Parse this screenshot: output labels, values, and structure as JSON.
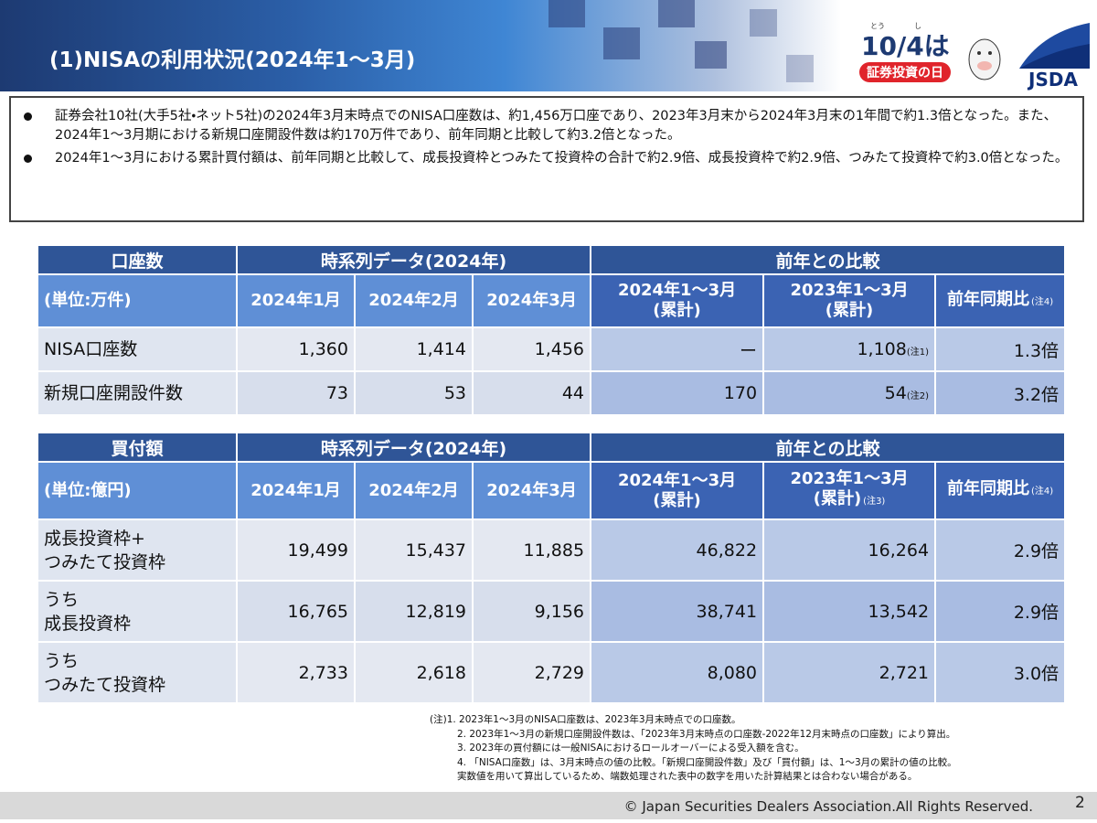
{
  "header": {
    "title": "(1)NISAの利用状況(2024年1～3月)",
    "badge_ruby": [
      "とう",
      "し"
    ],
    "badge_date": "10/4は",
    "badge_day": "証券投資の日",
    "logo": "JSDA"
  },
  "summary": [
    "証券会社10社(大手5社・ネット5社)の2024年3月末時点でのNISA口座数は、約1,456万口座であり、2023年3月末から2024年3月末の1年間で約1.3倍となった。また、2024年1～3月期における新規口座開設件数は約170万件であり、前年同期と比較して約3.2倍となった。",
    "2024年1～3月における累計買付額は、前年同期と比較して、成長投資枠とつみたて投資枠の合計で約2.9倍、成長投資枠で約2.9倍、つみたて投資枠で約3.0倍となった。"
  ],
  "table1": {
    "group_headers": [
      "口座数",
      "時系列データ(2024年)",
      "前年との比較"
    ],
    "sub_headers": [
      "(単位:万件)",
      "2024年1月",
      "2024年2月",
      "2024年3月",
      "2024年1～3月\n(累計)",
      "2023年1～3月\n(累計)",
      {
        "text": "前年同期比",
        "note": "(注4)"
      }
    ],
    "rows": [
      [
        "NISA口座数",
        "1,360",
        "1,414",
        "1,456",
        "ー",
        {
          "text": "1,108",
          "note": "(注1)"
        },
        "1.3倍"
      ],
      [
        "新規口座開設件数",
        "73",
        "53",
        "44",
        "170",
        {
          "text": "54",
          "note": "(注2)"
        },
        "3.2倍"
      ]
    ]
  },
  "table2": {
    "group_headers": [
      "買付額",
      "時系列データ(2024年)",
      "前年との比較"
    ],
    "sub_headers": [
      "(単位:億円)",
      "2024年1月",
      "2024年2月",
      "2024年3月",
      "2024年1～3月\n(累計)",
      {
        "text": "2023年1～3月\n(累計)",
        "note": "(注3)"
      },
      {
        "text": "前年同期比",
        "note": "(注4)"
      }
    ],
    "rows": [
      [
        "成長投資枠+\nつみたて投資枠",
        "19,499",
        "15,437",
        "11,885",
        "46,822",
        "16,264",
        "2.9倍"
      ],
      [
        "うち\n成長投資枠",
        "16,765",
        "12,819",
        "9,156",
        "38,741",
        "13,542",
        "2.9倍"
      ],
      [
        "うち\nつみたて投資枠",
        "2,733",
        "2,618",
        "2,729",
        "8,080",
        "2,721",
        "3.0倍"
      ]
    ]
  },
  "notes": [
    "(注)1. 2023年1～3月のNISA口座数は、2023年3月末時点での口座数。",
    "2. 2023年1～3月の新規口座開設件数は、「2023年3月末時点の口座数-2022年12月末時点の口座数」により算出。",
    "3. 2023年の買付額には一般NISAにおけるロールオーバーによる受入額を含む。",
    "4. 「NISA口座数」は、3月末時点の値の比較。「新規口座開設件数」及び「買付額」は、1～3月の累計の値の比較。\n実数値を用いて算出しているため、端数処理された表中の数字を用いた計算結果とは合わない場合がある。"
  ],
  "footer": {
    "copyright": "© Japan Securities Dealers Association.All Rights Reserved.",
    "page": "2"
  }
}
